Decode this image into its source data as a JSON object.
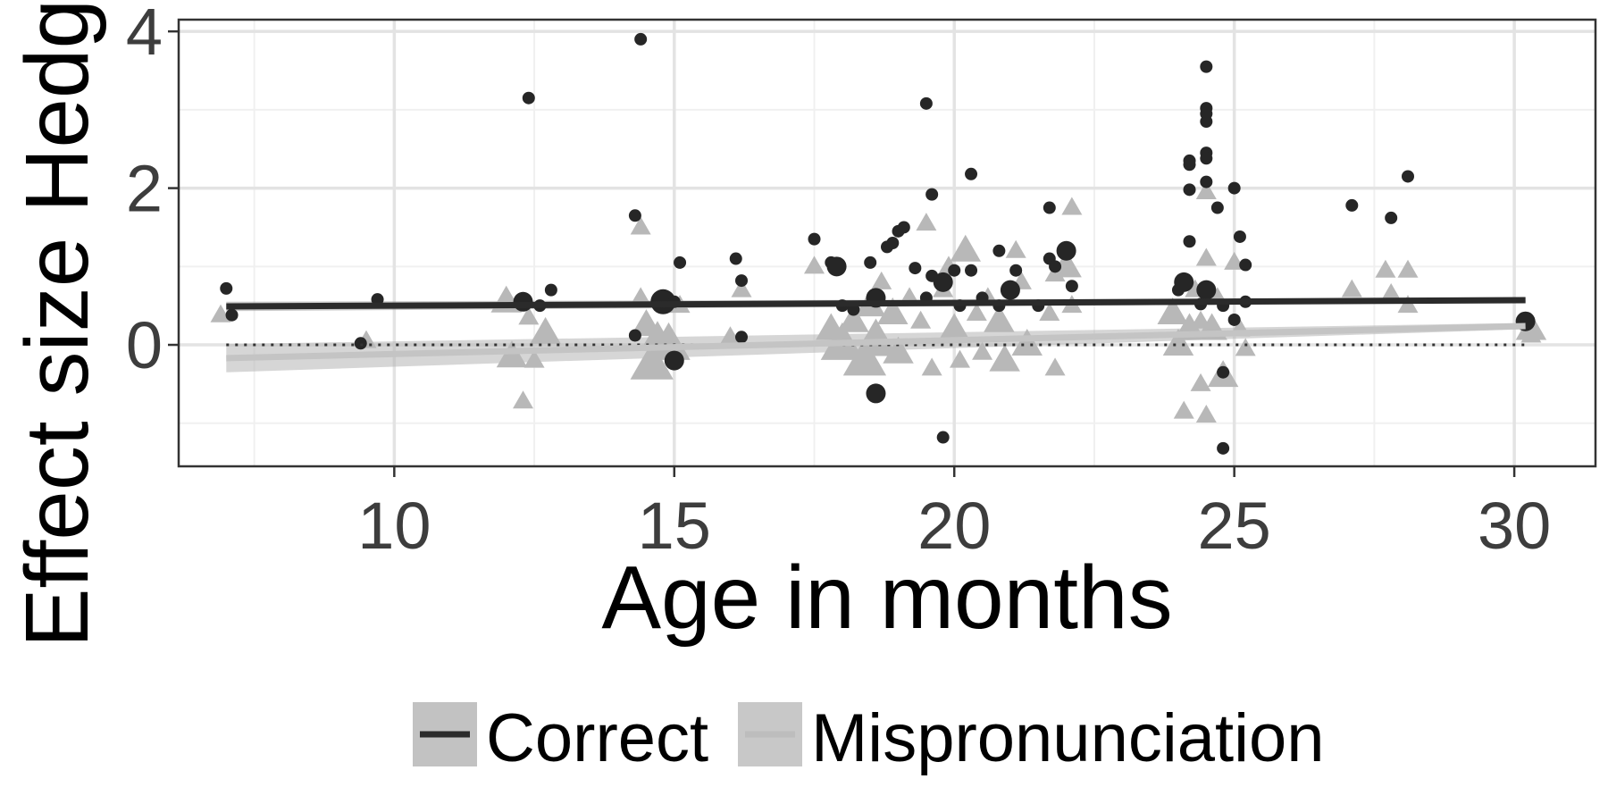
{
  "chart_data": {
    "type": "scatter",
    "xlabel": "Age in months",
    "ylabel": "Effect size Hedg",
    "xlim": [
      6.15,
      31.45
    ],
    "ylim": [
      -1.55,
      4.15
    ],
    "x_ticks": [
      10,
      15,
      20,
      25,
      30
    ],
    "x_tick_labels": [
      "10",
      "15",
      "20",
      "25",
      "30"
    ],
    "y_ticks": [
      0,
      2,
      4
    ],
    "y_tick_labels": [
      "0",
      "2",
      "4"
    ],
    "grid": true,
    "legend_position": "bottom",
    "reference_line": {
      "y": 0,
      "style": "dotted"
    },
    "series": [
      {
        "name": "Correct",
        "marker": "circle",
        "color": "#262626",
        "line_color": "#2b2b2b",
        "band_color": "#8c8c8c",
        "fit": {
          "x0": 7.0,
          "y0": 0.49,
          "x1": 30.2,
          "y1": 0.57,
          "ci0": 0.06,
          "ci1": 0.03
        },
        "points": [
          [
            7.0,
            0.72,
            1
          ],
          [
            7.1,
            0.38,
            1
          ],
          [
            9.7,
            0.58,
            1
          ],
          [
            9.4,
            0.02,
            1
          ],
          [
            12.4,
            3.15,
            1
          ],
          [
            12.3,
            0.55,
            2
          ],
          [
            12.6,
            0.5,
            1
          ],
          [
            12.8,
            0.7,
            1
          ],
          [
            14.4,
            3.9,
            1
          ],
          [
            14.3,
            1.65,
            1
          ],
          [
            14.3,
            0.12,
            1
          ],
          [
            14.8,
            0.55,
            3
          ],
          [
            15.0,
            0.55,
            1
          ],
          [
            15.1,
            1.05,
            1
          ],
          [
            15.0,
            -0.2,
            2
          ],
          [
            16.1,
            1.1,
            1
          ],
          [
            16.2,
            0.82,
            1
          ],
          [
            16.2,
            0.1,
            1
          ],
          [
            17.5,
            1.35,
            1
          ],
          [
            17.8,
            1.05,
            1
          ],
          [
            17.9,
            1.0,
            2
          ],
          [
            18.0,
            0.5,
            1
          ],
          [
            18.2,
            0.45,
            1
          ],
          [
            18.5,
            1.05,
            1
          ],
          [
            18.6,
            0.6,
            2
          ],
          [
            18.6,
            -0.62,
            2
          ],
          [
            18.8,
            1.25,
            1
          ],
          [
            18.9,
            1.3,
            1
          ],
          [
            19.0,
            1.45,
            1
          ],
          [
            19.1,
            1.5,
            1
          ],
          [
            19.3,
            0.98,
            1
          ],
          [
            19.5,
            3.08,
            1
          ],
          [
            19.6,
            1.92,
            1
          ],
          [
            19.5,
            0.6,
            1
          ],
          [
            19.6,
            0.88,
            1
          ],
          [
            19.8,
            -1.18,
            1
          ],
          [
            19.8,
            0.8,
            2
          ],
          [
            20.0,
            0.95,
            1
          ],
          [
            20.1,
            0.5,
            1
          ],
          [
            20.3,
            2.18,
            1
          ],
          [
            20.3,
            0.95,
            1
          ],
          [
            20.5,
            0.6,
            1
          ],
          [
            20.8,
            1.2,
            1
          ],
          [
            20.8,
            0.5,
            1
          ],
          [
            21.0,
            0.7,
            2
          ],
          [
            21.1,
            0.95,
            1
          ],
          [
            21.5,
            0.5,
            1
          ],
          [
            21.7,
            1.75,
            1
          ],
          [
            21.7,
            1.1,
            1
          ],
          [
            21.8,
            1.0,
            1
          ],
          [
            22.0,
            1.2,
            2
          ],
          [
            22.1,
            0.75,
            1
          ],
          [
            24.0,
            0.7,
            1
          ],
          [
            24.1,
            0.8,
            2
          ],
          [
            24.2,
            1.98,
            1
          ],
          [
            24.2,
            2.3,
            1
          ],
          [
            24.2,
            2.35,
            1
          ],
          [
            24.2,
            1.32,
            1
          ],
          [
            24.4,
            0.52,
            1
          ],
          [
            24.5,
            3.55,
            1
          ],
          [
            24.5,
            3.02,
            1
          ],
          [
            24.5,
            2.95,
            1
          ],
          [
            24.5,
            2.85,
            1
          ],
          [
            24.5,
            2.45,
            1
          ],
          [
            24.5,
            2.38,
            1
          ],
          [
            24.5,
            2.08,
            1
          ],
          [
            24.5,
            0.7,
            2
          ],
          [
            24.7,
            1.75,
            1
          ],
          [
            24.8,
            0.5,
            1
          ],
          [
            24.8,
            -0.35,
            1
          ],
          [
            24.8,
            -1.32,
            1
          ],
          [
            25.0,
            2.0,
            1
          ],
          [
            25.0,
            0.32,
            1
          ],
          [
            25.1,
            1.38,
            1
          ],
          [
            25.2,
            1.02,
            1
          ],
          [
            25.2,
            0.55,
            1
          ],
          [
            27.1,
            1.78,
            1
          ],
          [
            27.8,
            1.62,
            1
          ],
          [
            28.1,
            2.15,
            1
          ],
          [
            30.2,
            0.3,
            2
          ]
        ]
      },
      {
        "name": "Mispronunciation",
        "marker": "triangle",
        "color": "#b8b8b8",
        "line_color": "#c4c4c4",
        "band_color": "#b4b4b4",
        "fit": {
          "x0": 7.0,
          "y0": -0.17,
          "x1": 30.2,
          "y1": 0.24,
          "ci0": 0.18,
          "ci1": 0.04
        },
        "points": [
          [
            6.9,
            0.38,
            1
          ],
          [
            9.5,
            0.05,
            1
          ],
          [
            12.0,
            0.55,
            2
          ],
          [
            12.1,
            -0.15,
            2
          ],
          [
            12.3,
            -0.72,
            1
          ],
          [
            12.4,
            0.35,
            1
          ],
          [
            12.5,
            -0.2,
            1
          ],
          [
            12.7,
            0.15,
            2
          ],
          [
            14.4,
            1.5,
            1
          ],
          [
            14.4,
            0.6,
            1
          ],
          [
            14.5,
            0.25,
            2
          ],
          [
            14.6,
            -0.25,
            3
          ],
          [
            14.7,
            0.1,
            2
          ],
          [
            14.9,
            0.0,
            3
          ],
          [
            15.1,
            0.5,
            1
          ],
          [
            16.0,
            0.1,
            1
          ],
          [
            16.2,
            0.7,
            1
          ],
          [
            17.5,
            1.0,
            1
          ],
          [
            17.8,
            0.2,
            2
          ],
          [
            18.0,
            0.0,
            3
          ],
          [
            18.2,
            0.3,
            2
          ],
          [
            18.4,
            -0.2,
            3
          ],
          [
            18.5,
            0.5,
            2
          ],
          [
            18.6,
            0.05,
            3
          ],
          [
            18.7,
            0.8,
            1
          ],
          [
            18.9,
            0.4,
            2
          ],
          [
            19.0,
            -0.1,
            2
          ],
          [
            19.2,
            0.6,
            1
          ],
          [
            19.4,
            0.3,
            1
          ],
          [
            19.5,
            1.55,
            1
          ],
          [
            19.6,
            -0.3,
            1
          ],
          [
            19.8,
            0.7,
            1
          ],
          [
            19.9,
            1.0,
            1
          ],
          [
            20.0,
            0.2,
            2
          ],
          [
            20.1,
            -0.2,
            1
          ],
          [
            20.2,
            1.2,
            2
          ],
          [
            20.4,
            0.4,
            1
          ],
          [
            20.5,
            -0.1,
            1
          ],
          [
            20.6,
            0.6,
            1
          ],
          [
            20.8,
            0.3,
            2
          ],
          [
            20.9,
            -0.2,
            2
          ],
          [
            21.1,
            1.2,
            1
          ],
          [
            21.2,
            0.8,
            1
          ],
          [
            21.3,
            0.0,
            2
          ],
          [
            21.7,
            0.4,
            1
          ],
          [
            21.8,
            -0.3,
            1
          ],
          [
            21.8,
            0.9,
            1
          ],
          [
            22.0,
            1.0,
            2
          ],
          [
            22.1,
            1.75,
            1
          ],
          [
            22.1,
            0.5,
            1
          ],
          [
            23.9,
            0.4,
            2
          ],
          [
            24.0,
            0.0,
            2
          ],
          [
            24.1,
            -0.85,
            1
          ],
          [
            24.2,
            0.2,
            2
          ],
          [
            24.3,
            0.7,
            1
          ],
          [
            24.4,
            0.3,
            1
          ],
          [
            24.4,
            -0.5,
            1
          ],
          [
            24.5,
            1.1,
            1
          ],
          [
            24.5,
            1.95,
            1
          ],
          [
            24.5,
            -0.9,
            1
          ],
          [
            24.6,
            0.2,
            2
          ],
          [
            24.7,
            0.6,
            1
          ],
          [
            24.8,
            -0.4,
            2
          ],
          [
            25.0,
            1.05,
            1
          ],
          [
            25.1,
            0.2,
            1
          ],
          [
            25.2,
            -0.05,
            1
          ],
          [
            27.1,
            0.7,
            1
          ],
          [
            27.7,
            0.95,
            1
          ],
          [
            27.8,
            0.65,
            1
          ],
          [
            28.1,
            0.95,
            1
          ],
          [
            28.1,
            0.5,
            1
          ],
          [
            30.3,
            0.2,
            2
          ],
          [
            30.3,
            0.12,
            1
          ]
        ]
      }
    ]
  }
}
